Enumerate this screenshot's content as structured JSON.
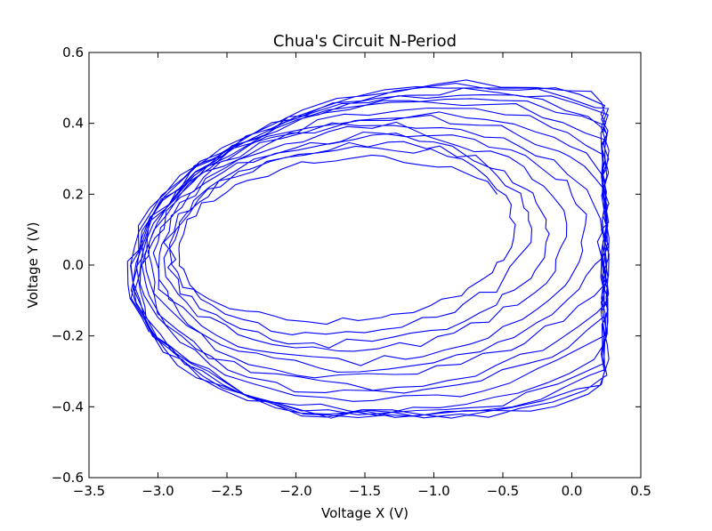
{
  "chart_data": {
    "type": "line",
    "title": "Chua's Circuit N-Period",
    "xlabel": "Voltage X (V)",
    "ylabel": "Voltage Y (V)",
    "xlim": [
      -3.5,
      0.5
    ],
    "ylim": [
      -0.6,
      0.6
    ],
    "xticks": [
      -3.5,
      -3.0,
      -2.5,
      -2.0,
      -1.5,
      -1.0,
      -0.5,
      0.0,
      0.5
    ],
    "xtick_labels": [
      "−3.5",
      "−3.0",
      "−2.5",
      "−2.0",
      "−1.5",
      "−1.0",
      "−0.5",
      "0.0",
      "0.5"
    ],
    "yticks": [
      -0.6,
      -0.4,
      -0.2,
      0.0,
      0.2,
      0.4,
      0.6
    ],
    "ytick_labels": [
      "−0.6",
      "−0.4",
      "−0.2",
      "0.0",
      "0.2",
      "0.4",
      "0.6"
    ],
    "grid": false,
    "legend": "none",
    "line_color": "#0000ff",
    "series": [
      {
        "loops": [
          {
            "center": [
              -1.63,
              0.07
            ],
            "rx": 1.23,
            "ry": 0.23,
            "phase": 0.5
          },
          {
            "center": [
              -1.6,
              0.07
            ],
            "rx": 1.3,
            "ry": 0.26,
            "phase": 0.7
          },
          {
            "center": [
              -1.55,
              0.06
            ],
            "rx": 1.37,
            "ry": 0.28,
            "phase": 0.9
          },
          {
            "center": [
              -1.5,
              0.06
            ],
            "rx": 1.45,
            "ry": 0.3,
            "phase": 1.1
          },
          {
            "center": [
              -1.45,
              0.05
            ],
            "rx": 1.55,
            "ry": 0.32,
            "phase": 1.3
          },
          {
            "center": [
              -1.4,
              0.05
            ],
            "rx": 1.62,
            "ry": 0.34,
            "phase": 1.5
          },
          {
            "center": [
              -1.35,
              0.05
            ],
            "rx": 1.7,
            "ry": 0.36,
            "phase": 1.7
          },
          {
            "center": [
              -1.3,
              0.04
            ],
            "rx": 1.78,
            "ry": 0.38,
            "phase": 1.9
          },
          {
            "center": [
              -1.25,
              0.04
            ],
            "rx": 1.85,
            "ry": 0.4,
            "phase": 2.1
          },
          {
            "center": [
              -1.2,
              0.04
            ],
            "rx": 1.92,
            "ry": 0.42,
            "phase": 2.3
          },
          {
            "center": [
              -1.15,
              0.03
            ],
            "rx": 2.0,
            "ry": 0.44,
            "phase": 2.5
          },
          {
            "center": [
              -1.1,
              0.03
            ],
            "rx": 2.05,
            "ry": 0.45,
            "phase": 2.7
          },
          {
            "center": [
              -1.05,
              0.03
            ],
            "rx": 2.12,
            "ry": 0.46,
            "phase": 2.9
          },
          {
            "center": [
              -1.0,
              0.03
            ],
            "rx": 2.18,
            "ry": 0.47,
            "phase": 3.1
          },
          {
            "center": [
              -0.95,
              0.03
            ],
            "rx": 2.25,
            "ry": 0.47,
            "phase": 3.3
          },
          {
            "center": [
              -0.9,
              0.03
            ],
            "rx": 2.3,
            "ry": 0.48,
            "phase": 3.5
          }
        ]
      }
    ]
  }
}
